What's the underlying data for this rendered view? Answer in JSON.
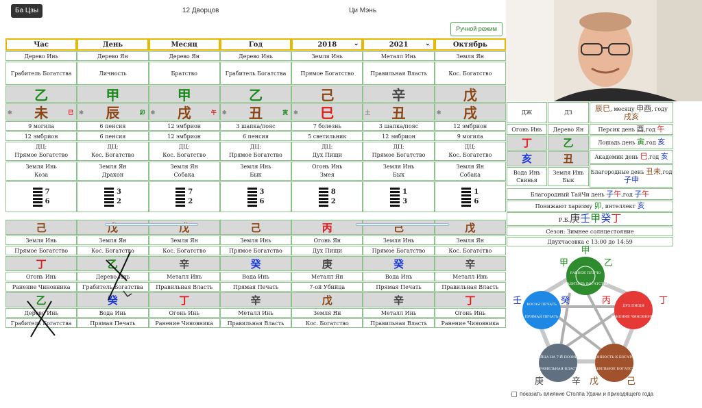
{
  "nav": {
    "tab1": "Ба Цзы",
    "tab2": "12 Дворцов",
    "tab3": "Ци Мэнь"
  },
  "manual_mode": "Ручной режим",
  "headers": [
    "Час",
    "День",
    "Месяц",
    "Год",
    "2018",
    "2021",
    "Октябрь"
  ],
  "elements": [
    "Дерево Инь",
    "Дерево Ян",
    "Дерево Ян",
    "Дерево Инь",
    "Земля Инь",
    "Металл Инь",
    "Земля Ян"
  ],
  "gods": [
    "Грабитель Богатства",
    "Личность",
    "Братство",
    "Грабитель Богатства",
    "Прямое Богатство",
    "Правильная Власть",
    "Кос. Богатство"
  ],
  "stems": [
    "乙",
    "甲",
    "甲",
    "乙",
    "己",
    "辛",
    "戊"
  ],
  "stem_colors": [
    "#1a8a1a",
    "#1a8a1a",
    "#1a8a1a",
    "#1a8a1a",
    "#8b4513",
    "#444444",
    "#8b4513"
  ],
  "branches": [
    "未",
    "辰",
    "戌",
    "丑",
    "巳",
    "丑",
    "戌"
  ],
  "branch_colors": [
    "#8b4513",
    "#8b4513",
    "#8b4513",
    "#8b4513",
    "#e31a1a",
    "#8b4513",
    "#8b4513"
  ],
  "branch_left": [
    "✱",
    "✱",
    "✱",
    "✱",
    "✱",
    "土",
    "✱"
  ],
  "branch_right": [
    "巳",
    "卯",
    "午",
    "寅",
    "",
    "",
    ""
  ],
  "branch_right_colors": [
    "#e31a1a",
    "#1a8a1a",
    "#e31a1a",
    "#1a8a1a",
    "",
    "",
    ""
  ],
  "stage1": [
    "9 могила",
    "6 пенсия",
    "12 эмбрион",
    "3 шапка/пояс",
    "7 болезнь",
    "3 шапка/пояс",
    "12 эмбрион"
  ],
  "stage2": [
    "12 эмбрион",
    "6 пенсия",
    "12 эмбрион",
    "6 пенсия",
    "5 светильник",
    "12 эмбрион",
    "9 могила"
  ],
  "dc_label": "ДЦ:",
  "dc_values": [
    "Прямое Богатство",
    "Кос. Богатство",
    "Кос. Богатство",
    "Прямое Богатство",
    "Дух Пищи",
    "Прямое Богатство",
    "Кос. Богатство"
  ],
  "branch_elements": [
    "Земля Инь",
    "Земля Ян",
    "Земля Ян",
    "Земля Инь",
    "Огонь Инь",
    "Земля Инь",
    "Земля Ян"
  ],
  "animals": [
    "Коза",
    "Дракон",
    "Собака",
    "Бык",
    "Змея",
    "Бык",
    "Собака"
  ],
  "hex_numbers": [
    [
      "7",
      "6"
    ],
    [
      "3",
      "2"
    ],
    [
      "7",
      "2"
    ],
    [
      "3",
      "6"
    ],
    [
      "8",
      "2"
    ],
    [
      "1",
      "3"
    ],
    [
      "1",
      "6"
    ]
  ],
  "hidden1": {
    "stems": [
      "己",
      "戊",
      "戊",
      "己",
      "丙",
      "己",
      "戊"
    ],
    "colors": [
      "#8b4513",
      "#8b4513",
      "#8b4513",
      "#8b4513",
      "#e31a1a",
      "#8b4513",
      "#8b4513"
    ],
    "elements": [
      "Земля Инь",
      "Земля Ян",
      "Земля Ян",
      "Земля Инь",
      "Огонь Ян",
      "Земля Инь",
      "Земля Ян"
    ],
    "gods": [
      "Прямое Богатство",
      "Кос. Богатство",
      "Кос. Богатство",
      "Прямое Богатство",
      "Дух Пищи",
      "Прямое Богатство",
      "Кос. Богатство"
    ]
  },
  "hidden2": {
    "stems": [
      "丁",
      "乙",
      "辛",
      "癸",
      "庚",
      "癸",
      "辛"
    ],
    "colors": [
      "#e31a1a",
      "#1a8a1a",
      "#444444",
      "#1a3ad8",
      "#444444",
      "#1a3ad8",
      "#444444"
    ],
    "elements": [
      "Огонь Инь",
      "Дерево Инь",
      "Металл Инь",
      "Вода Инь",
      "Металл Ян",
      "Вода Инь",
      "Металл Инь"
    ],
    "gods": [
      "Ранение Чиновника",
      "Грабитель Богатства",
      "Правильная Власть",
      "Прямая Печать",
      "7-ой Убийца",
      "Прямая Печать",
      "Правильная Власть"
    ]
  },
  "hidden3": {
    "stems": [
      "乙",
      "癸",
      "丁",
      "辛",
      "戊",
      "辛",
      "丁"
    ],
    "colors": [
      "#1a8a1a",
      "#1a3ad8",
      "#e31a1a",
      "#444444",
      "#8b4513",
      "#444444",
      "#e31a1a"
    ],
    "elements": [
      "Дерево Инь",
      "Вода Инь",
      "Огонь Инь",
      "Металл Инь",
      "Земля Ян",
      "Металл Инь",
      "Огонь Инь"
    ],
    "gods": [
      "Грабитель Богатства",
      "Прямая Печать",
      "Ранение Чиновника",
      "Правильная Власть",
      "Кос. Богатство",
      "Правильная Власть",
      "Ранение Чиновника"
    ]
  },
  "panel": {
    "dj": "ДЖ",
    "dz": "ДЗ",
    "dj_elem": "Огонь Инь",
    "dz_elem": "Дерево Ян",
    "dj_stem": "丁",
    "dz_stem": "乙",
    "dj_branch": "亥",
    "dz_branch": "丑",
    "dj_elem2": "Вода Инь",
    "dz_elem2": "Земля Инь",
    "dj_animal": "Свинья",
    "dz_animal": "Бык",
    "r1_a": "辰巳",
    "r1_b": ", месяцу ",
    "r1_c": "申酉",
    "r1_d": ", году ",
    "r1_e": "戌亥",
    "peach_a": "Персик день ",
    "peach_b": "酉",
    "peach_c": ",год ",
    "peach_d": "午",
    "horse_a": "Лошадь день ",
    "horse_b": "寅",
    "horse_c": ",год ",
    "horse_d": "亥",
    "acad_a": "Академик день ",
    "acad_b": "巳",
    "acad_c": ",год ",
    "acad_d": "亥",
    "noble_a": "Благородные день ",
    "noble_b": "丑未",
    "noble_c": ",год ",
    "noble_d": "子申",
    "taiji_a": "Благородный ТайЧи день ",
    "taiji_b": "子",
    "taiji_c": "午",
    "taiji_d": ",год ",
    "taiji_e": "子",
    "taiji_f": "午",
    "charisma_a": "Понижают харизму ",
    "charisma_b": "卯",
    "charisma_c": ", интеллект ",
    "charisma_d": "亥",
    "rb_label": "Р.Б.",
    "rb_stems": [
      "庚",
      "壬",
      "甲",
      "癸",
      "丁"
    ],
    "rb_colors": [
      "#444444",
      "#1a3ad8",
      "#1a8a1a",
      "#1a3ad8",
      "#e31a1a"
    ],
    "season": "Сезон: Зимнее солнцестояние",
    "hours": "Двухчасовка с 13:00 до 14:59"
  },
  "wheel": {
    "wood_top": "甲",
    "wood_yi": "乙",
    "fire_bing": "丙",
    "fire_ding": "丁",
    "water_ren": "壬",
    "water_gui": "癸",
    "metal_geng": "庚",
    "metal_xin": "辛",
    "earth_wu": "戊",
    "earth_ji": "己",
    "wood_label1": "РАВНОЕ ПЛЕЧО",
    "wood_label2": "ГРАБИТЕЛЬ БОГАТСТВА",
    "fire_label1": "ДУХ ПИЩИ",
    "fire_label2": "РАНЕНИЕ ЧИНОВНИКА",
    "water_label1": "КОСАЯ ПЕЧАТЬ",
    "water_label2": "ПРЯМАЯ ПЕЧАТЬ",
    "metal_label1": "УБИЙЦА НА 7-Й ПОЗИЦИИ",
    "metal_label2": "ПРАВИЛЬНАЯ ВЛАСТЬ",
    "earth_label1": "СКЛОННОСТЬ К БОГАТСТВУ",
    "earth_label2": "СТАБИЛЬНОЕ БОГАТСТВО"
  },
  "checkbox_label": "показать влияние Столпа Удачи и приходящего года"
}
